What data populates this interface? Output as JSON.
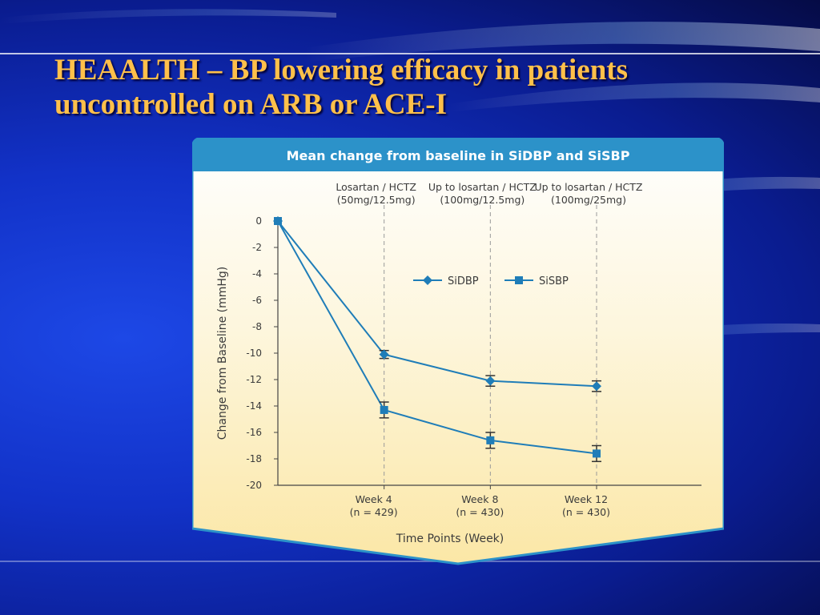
{
  "slide": {
    "title_line1": "HEAALTH – BP lowering efficacy in patients",
    "title_line2": "uncontrolled on ARB or ACE-I"
  },
  "colors": {
    "title": "#ffc04a",
    "background": "#1232c8",
    "panel_header": "#2c92c9",
    "panel_fill": "#fdf6dd",
    "series_color": "#1f7db8"
  },
  "chart_data": {
    "type": "line",
    "title": "Mean change from baseline in SiDBP and SiSBP",
    "xlabel": "Time Points (Week)",
    "ylabel": "Change from Baseline (mmHg)",
    "ylim": [
      -20,
      0
    ],
    "yticks": [
      0,
      -2,
      -4,
      -6,
      -8,
      -10,
      -12,
      -14,
      -16,
      -18,
      -20
    ],
    "x": [
      0,
      4,
      8,
      12
    ],
    "xticks": [
      {
        "x": 4,
        "line1": "Week 4",
        "line2": "(n = 429)"
      },
      {
        "x": 8,
        "line1": "Week 8",
        "line2": "(n = 430)"
      },
      {
        "x": 12,
        "line1": "Week 12",
        "line2": "(n = 430)"
      }
    ],
    "phases": [
      {
        "x": 4,
        "line1": "Losartan / HCTZ",
        "line2": "(50mg/12.5mg)"
      },
      {
        "x": 8,
        "line1": "Up to losartan / HCTZ",
        "line2": "(100mg/12.5mg)"
      },
      {
        "x": 12,
        "line1": "Up to losartan / HCTZ",
        "line2": "(100mg/25mg)"
      }
    ],
    "series": [
      {
        "name": "SiDBP",
        "marker": "diamond",
        "values": [
          0,
          -10.1,
          -12.1,
          -12.5
        ],
        "errors": [
          0,
          0.3,
          0.4,
          0.4
        ]
      },
      {
        "name": "SiSBP",
        "marker": "square",
        "values": [
          0,
          -14.3,
          -16.6,
          -17.6
        ],
        "errors": [
          0,
          0.6,
          0.6,
          0.6
        ]
      }
    ],
    "legend_position": "upper-center",
    "grid": false
  }
}
